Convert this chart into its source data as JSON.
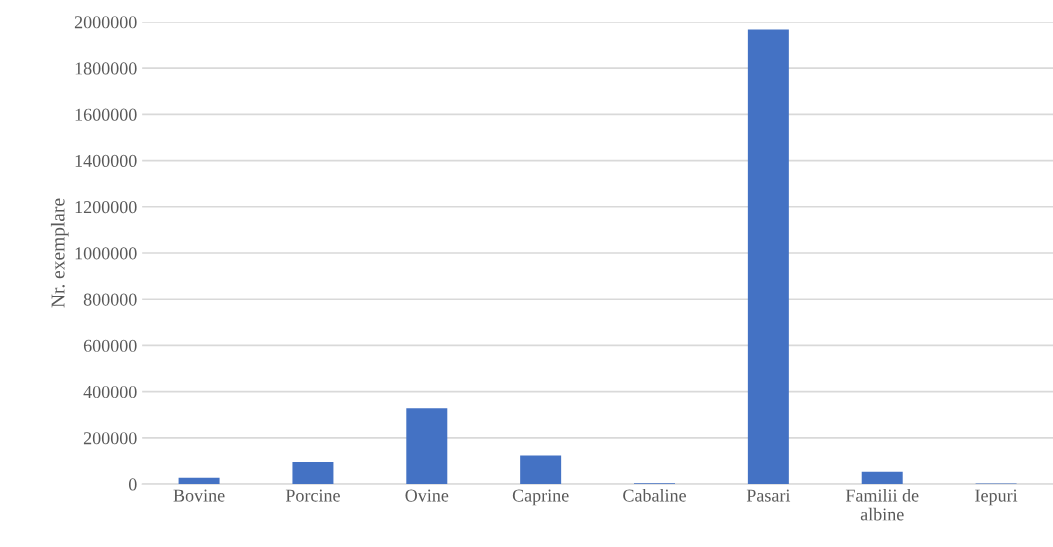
{
  "chart_data": {
    "type": "bar",
    "ylabel": "Nr. exemplare",
    "categories": [
      "Bovine",
      "Porcine",
      "Ovine",
      "Caprine",
      "Cabaline",
      "Pasari",
      "Familii de\nalbine",
      "Iepuri"
    ],
    "values": [
      27000,
      96000,
      328000,
      124000,
      4000,
      1967000,
      53000,
      3000
    ],
    "color": "#4472c4",
    "ylim": [
      0,
      2000000
    ],
    "yticks": [
      0,
      200000,
      400000,
      600000,
      800000,
      1000000,
      1200000,
      1400000,
      1600000,
      1800000,
      2000000
    ],
    "grid": "y"
  }
}
